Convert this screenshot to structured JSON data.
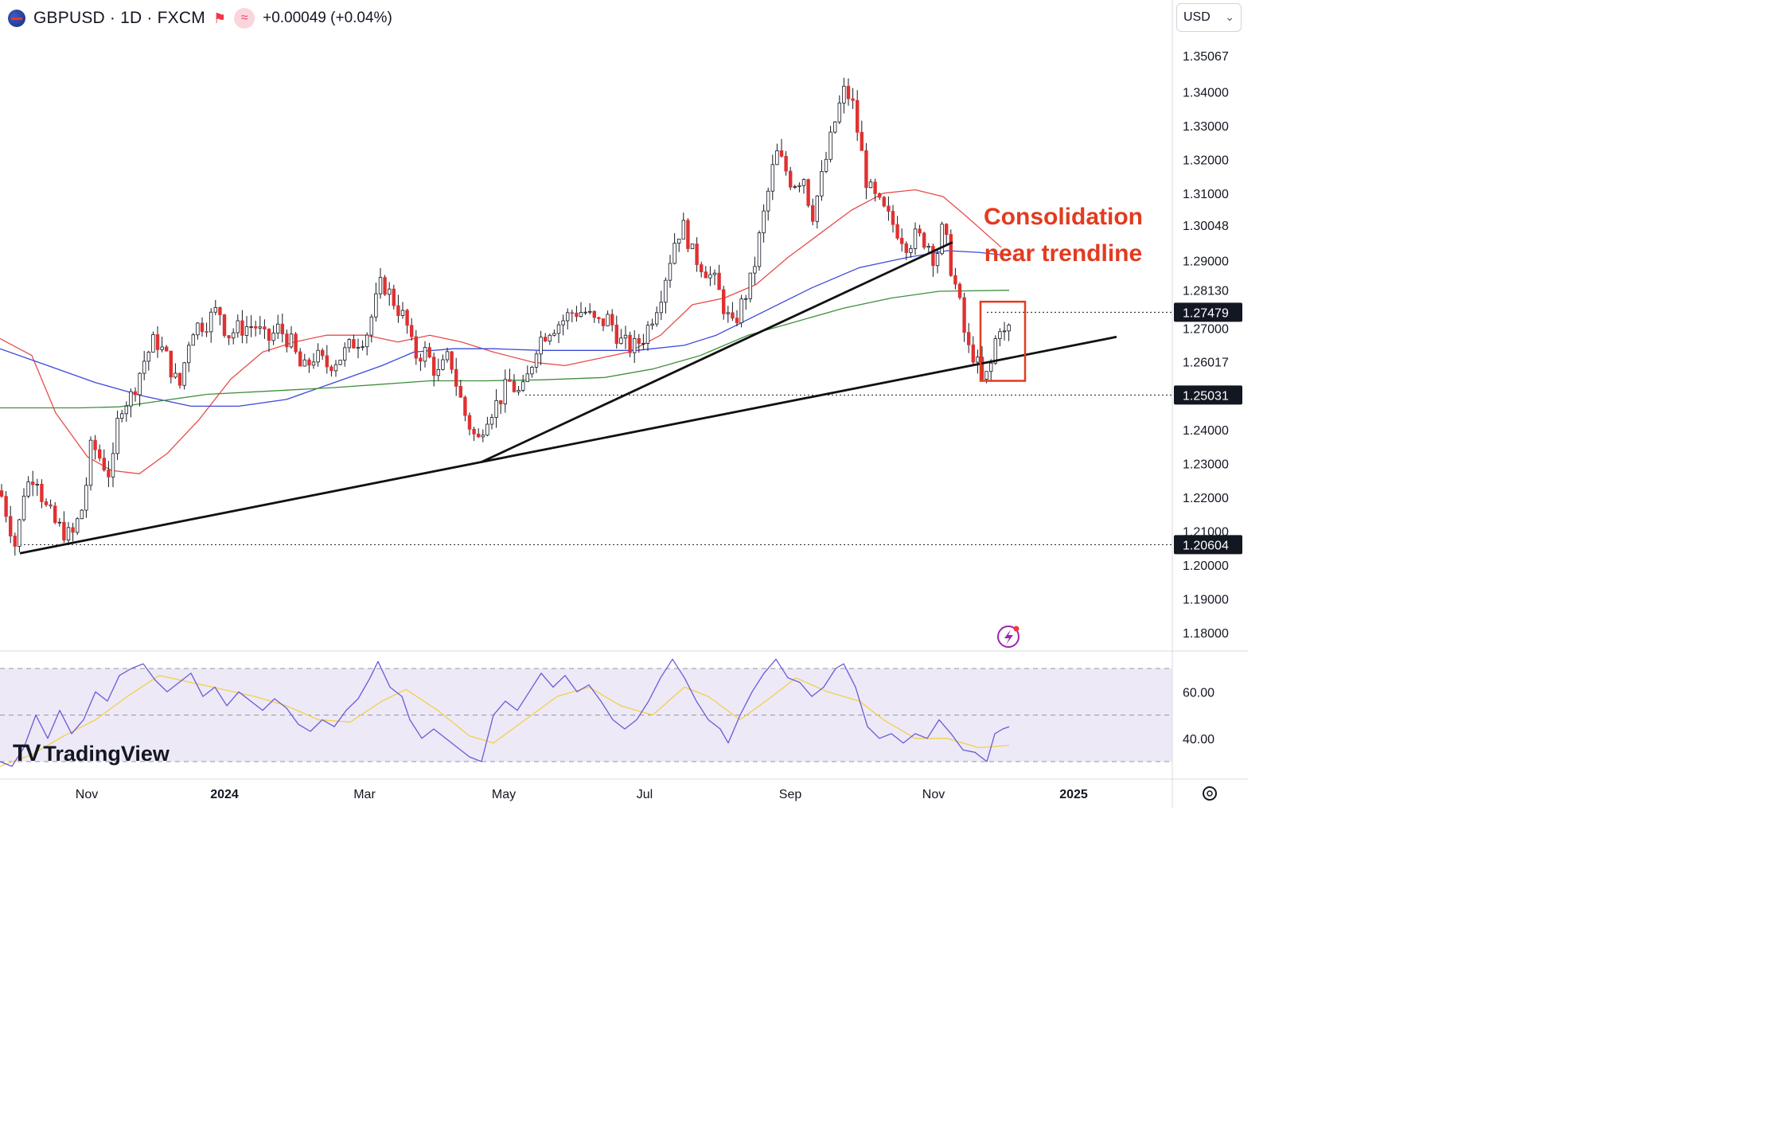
{
  "header": {
    "symbol_label": "GBPUSD · 1D · FXCM",
    "change_label": "+0.00049 (+0.04%)",
    "flag_icon": "gbp-usd-flag-icon",
    "market_icon": "red-flag-icon",
    "indicator_icon": "wave-icon"
  },
  "currency_selector": {
    "value": "USD"
  },
  "annotation": {
    "line1": "Consolidation",
    "line2": "near trendline",
    "color": "#e23b1f"
  },
  "logo": {
    "mark": "TV",
    "name": "TradingView"
  },
  "price_tags": [
    {
      "label": "1.27479",
      "value": 1.27479
    },
    {
      "label": "1.25031",
      "value": 1.25031
    },
    {
      "label": "1.20604",
      "value": 1.20604
    }
  ],
  "chart_data": {
    "type": "line",
    "title": "",
    "price_axis": {
      "ticks": [
        "1.35067",
        "1.34000",
        "1.33000",
        "1.32000",
        "1.31000",
        "1.30048",
        "1.29000",
        "1.28130",
        "1.27000",
        "1.26017",
        "1.24000",
        "1.23000",
        "1.22000",
        "1.21000",
        "1.20000",
        "1.19000",
        "1.18000"
      ],
      "range": [
        1.175,
        1.355
      ]
    },
    "time_axis": {
      "labels": [
        "Nov",
        "2024",
        "Mar",
        "May",
        "Jul",
        "Sep",
        "Nov",
        "2025"
      ],
      "bold": [
        "2024",
        "2025"
      ]
    },
    "series": [
      {
        "name": "",
        "color": "#e84b4b",
        "role": "ma-short",
        "points": [
          [
            0,
            1.267
          ],
          [
            40,
            1.262
          ],
          [
            70,
            1.245
          ],
          [
            110,
            1.232
          ],
          [
            140,
            1.228
          ],
          [
            175,
            1.227
          ],
          [
            210,
            1.233
          ],
          [
            250,
            1.243
          ],
          [
            290,
            1.255
          ],
          [
            330,
            1.263
          ],
          [
            370,
            1.266
          ],
          [
            410,
            1.268
          ],
          [
            460,
            1.268
          ],
          [
            500,
            1.266
          ],
          [
            540,
            1.268
          ],
          [
            580,
            1.266
          ],
          [
            620,
            1.263
          ],
          [
            670,
            1.26
          ],
          [
            710,
            1.259
          ],
          [
            750,
            1.261
          ],
          [
            790,
            1.263
          ],
          [
            830,
            1.268
          ],
          [
            870,
            1.277
          ],
          [
            910,
            1.279
          ],
          [
            950,
            1.283
          ],
          [
            990,
            1.291
          ],
          [
            1030,
            1.298
          ],
          [
            1070,
            1.305
          ],
          [
            1110,
            1.31
          ],
          [
            1150,
            1.311
          ],
          [
            1185,
            1.309
          ],
          [
            1215,
            1.303
          ],
          [
            1258,
            1.294
          ]
        ]
      },
      {
        "name": "",
        "color": "#3b48d9",
        "role": "ma-mid",
        "points": [
          [
            0,
            1.264
          ],
          [
            60,
            1.259
          ],
          [
            120,
            1.254
          ],
          [
            180,
            1.25
          ],
          [
            240,
            1.247
          ],
          [
            300,
            1.247
          ],
          [
            360,
            1.249
          ],
          [
            420,
            1.254
          ],
          [
            480,
            1.259
          ],
          [
            520,
            1.263
          ],
          [
            570,
            1.264
          ],
          [
            620,
            1.264
          ],
          [
            680,
            1.2635
          ],
          [
            740,
            1.2635
          ],
          [
            800,
            1.2635
          ],
          [
            860,
            1.265
          ],
          [
            900,
            1.268
          ],
          [
            960,
            1.275
          ],
          [
            1020,
            1.282
          ],
          [
            1080,
            1.288
          ],
          [
            1140,
            1.291
          ],
          [
            1190,
            1.293
          ],
          [
            1230,
            1.2925
          ],
          [
            1268,
            1.2915
          ]
        ]
      },
      {
        "name": "",
        "color": "#3f8f3f",
        "role": "ma-long",
        "points": [
          [
            0,
            1.2465
          ],
          [
            100,
            1.2465
          ],
          [
            150,
            1.2468
          ],
          [
            200,
            1.2485
          ],
          [
            260,
            1.2505
          ],
          [
            340,
            1.2515
          ],
          [
            420,
            1.2525
          ],
          [
            480,
            1.2535
          ],
          [
            540,
            1.2545
          ],
          [
            610,
            1.2545
          ],
          [
            680,
            1.2548
          ],
          [
            760,
            1.2555
          ],
          [
            820,
            1.258
          ],
          [
            880,
            1.262
          ],
          [
            940,
            1.268
          ],
          [
            1000,
            1.272
          ],
          [
            1060,
            1.276
          ],
          [
            1120,
            1.279
          ],
          [
            1180,
            1.281
          ],
          [
            1268,
            1.2813
          ]
        ]
      },
      {
        "name": "",
        "color": "#111111",
        "role": "trendline-1",
        "points": [
          [
            25,
            1.2035
          ],
          [
            605,
            1.2305
          ],
          [
            1403,
            1.2675
          ]
        ]
      },
      {
        "name": "",
        "color": "#111111",
        "role": "trendline-2",
        "points": [
          [
            605,
            1.2305
          ],
          [
            1197,
            1.2955
          ]
        ]
      }
    ],
    "candles_path": [
      [
        0,
        1.222
      ],
      [
        10,
        1.214
      ],
      [
        20,
        1.205
      ],
      [
        30,
        1.222
      ],
      [
        45,
        1.228
      ],
      [
        55,
        1.218
      ],
      [
        70,
        1.212
      ],
      [
        90,
        1.208
      ],
      [
        105,
        1.218
      ],
      [
        115,
        1.236
      ],
      [
        125,
        1.232
      ],
      [
        140,
        1.226
      ],
      [
        150,
        1.247
      ],
      [
        165,
        1.25
      ],
      [
        180,
        1.26
      ],
      [
        195,
        1.267
      ],
      [
        210,
        1.261
      ],
      [
        225,
        1.252
      ],
      [
        240,
        1.27
      ],
      [
        260,
        1.272
      ],
      [
        275,
        1.276
      ],
      [
        285,
        1.268
      ],
      [
        300,
        1.27
      ],
      [
        320,
        1.271
      ],
      [
        335,
        1.266
      ],
      [
        350,
        1.27
      ],
      [
        365,
        1.266
      ],
      [
        380,
        1.257
      ],
      [
        395,
        1.262
      ],
      [
        410,
        1.259
      ],
      [
        430,
        1.262
      ],
      [
        445,
        1.266
      ],
      [
        460,
        1.268
      ],
      [
        470,
        1.276
      ],
      [
        480,
        1.284
      ],
      [
        495,
        1.278
      ],
      [
        510,
        1.272
      ],
      [
        520,
        1.262
      ],
      [
        535,
        1.263
      ],
      [
        550,
        1.256
      ],
      [
        565,
        1.262
      ],
      [
        575,
        1.252
      ],
      [
        585,
        1.244
      ],
      [
        600,
        1.236
      ],
      [
        610,
        1.244
      ],
      [
        625,
        1.248
      ],
      [
        640,
        1.254
      ],
      [
        655,
        1.25
      ],
      [
        665,
        1.257
      ],
      [
        675,
        1.266
      ],
      [
        690,
        1.27
      ],
      [
        705,
        1.272
      ],
      [
        720,
        1.275
      ],
      [
        735,
        1.275
      ],
      [
        750,
        1.271
      ],
      [
        765,
        1.273
      ],
      [
        780,
        1.266
      ],
      [
        795,
        1.264
      ],
      [
        810,
        1.268
      ],
      [
        820,
        1.274
      ],
      [
        830,
        1.28
      ],
      [
        840,
        1.289
      ],
      [
        850,
        1.298
      ],
      [
        860,
        1.3
      ],
      [
        870,
        1.292
      ],
      [
        885,
        1.288
      ],
      [
        900,
        1.283
      ],
      [
        910,
        1.276
      ],
      [
        920,
        1.27
      ],
      [
        930,
        1.276
      ],
      [
        945,
        1.285
      ],
      [
        955,
        1.298
      ],
      [
        965,
        1.31
      ],
      [
        975,
        1.322
      ],
      [
        985,
        1.318
      ],
      [
        995,
        1.313
      ],
      [
        1010,
        1.315
      ],
      [
        1020,
        1.303
      ],
      [
        1030,
        1.312
      ],
      [
        1040,
        1.322
      ],
      [
        1050,
        1.332
      ],
      [
        1060,
        1.34
      ],
      [
        1070,
        1.338
      ],
      [
        1080,
        1.325
      ],
      [
        1090,
        1.312
      ],
      [
        1100,
        1.308
      ],
      [
        1115,
        1.303
      ],
      [
        1125,
        1.3
      ],
      [
        1140,
        1.295
      ],
      [
        1150,
        1.297
      ],
      [
        1165,
        1.296
      ],
      [
        1175,
        1.29
      ],
      [
        1185,
        1.3
      ],
      [
        1195,
        1.288
      ],
      [
        1205,
        1.278
      ],
      [
        1215,
        1.264
      ],
      [
        1225,
        1.262
      ],
      [
        1235,
        1.253
      ],
      [
        1245,
        1.259
      ],
      [
        1255,
        1.272
      ],
      [
        1262,
        1.268
      ],
      [
        1268,
        1.27
      ]
    ],
    "consolidation_box": {
      "x_range": [
        1232,
        1288
      ],
      "price_range": [
        1.2545,
        1.2779
      ]
    },
    "horizontal_levels": [
      1.27479,
      1.25031,
      1.20604
    ],
    "rsi": {
      "ticks": [
        "60.00",
        "40.00"
      ],
      "range": [
        25,
        80
      ],
      "band": [
        30,
        70
      ],
      "mid": 50,
      "rsi_color": "#6b5bd6",
      "signal_color": "#f2d04a",
      "rsi_points": [
        [
          0,
          30
        ],
        [
          15,
          28
        ],
        [
          30,
          36
        ],
        [
          45,
          50
        ],
        [
          60,
          40
        ],
        [
          75,
          52
        ],
        [
          90,
          42
        ],
        [
          105,
          48
        ],
        [
          120,
          60
        ],
        [
          135,
          56
        ],
        [
          150,
          67
        ],
        [
          165,
          70
        ],
        [
          180,
          72
        ],
        [
          195,
          65
        ],
        [
          210,
          60
        ],
        [
          225,
          64
        ],
        [
          240,
          68
        ],
        [
          255,
          58
        ],
        [
          270,
          62
        ],
        [
          285,
          54
        ],
        [
          300,
          60
        ],
        [
          315,
          56
        ],
        [
          330,
          52
        ],
        [
          345,
          57
        ],
        [
          360,
          53
        ],
        [
          375,
          46
        ],
        [
          390,
          43
        ],
        [
          405,
          48
        ],
        [
          420,
          45
        ],
        [
          435,
          52
        ],
        [
          450,
          57
        ],
        [
          465,
          66
        ],
        [
          475,
          73
        ],
        [
          490,
          62
        ],
        [
          505,
          58
        ],
        [
          515,
          48
        ],
        [
          530,
          40
        ],
        [
          545,
          44
        ],
        [
          560,
          40
        ],
        [
          575,
          36
        ],
        [
          590,
          32
        ],
        [
          605,
          30
        ],
        [
          620,
          50
        ],
        [
          635,
          56
        ],
        [
          650,
          52
        ],
        [
          665,
          60
        ],
        [
          680,
          68
        ],
        [
          695,
          62
        ],
        [
          710,
          67
        ],
        [
          725,
          60
        ],
        [
          740,
          63
        ],
        [
          755,
          56
        ],
        [
          770,
          48
        ],
        [
          785,
          44
        ],
        [
          800,
          48
        ],
        [
          815,
          56
        ],
        [
          830,
          66
        ],
        [
          845,
          74
        ],
        [
          860,
          66
        ],
        [
          875,
          56
        ],
        [
          890,
          48
        ],
        [
          905,
          44
        ],
        [
          915,
          38
        ],
        [
          930,
          50
        ],
        [
          945,
          60
        ],
        [
          960,
          68
        ],
        [
          975,
          74
        ],
        [
          990,
          66
        ],
        [
          1005,
          64
        ],
        [
          1020,
          58
        ],
        [
          1035,
          62
        ],
        [
          1050,
          70
        ],
        [
          1060,
          72
        ],
        [
          1075,
          62
        ],
        [
          1090,
          45
        ],
        [
          1105,
          40
        ],
        [
          1120,
          42
        ],
        [
          1135,
          38
        ],
        [
          1150,
          42
        ],
        [
          1165,
          40
        ],
        [
          1180,
          48
        ],
        [
          1195,
          42
        ],
        [
          1210,
          35
        ],
        [
          1225,
          34
        ],
        [
          1240,
          30
        ],
        [
          1250,
          42
        ],
        [
          1260,
          44
        ],
        [
          1268,
          45
        ]
      ],
      "signal_points": [
        [
          0,
          28
        ],
        [
          40,
          33
        ],
        [
          80,
          41
        ],
        [
          120,
          48
        ],
        [
          160,
          58
        ],
        [
          200,
          67
        ],
        [
          240,
          64
        ],
        [
          280,
          61
        ],
        [
          320,
          58
        ],
        [
          360,
          54
        ],
        [
          400,
          48
        ],
        [
          440,
          47
        ],
        [
          480,
          56
        ],
        [
          510,
          61
        ],
        [
          550,
          52
        ],
        [
          590,
          41
        ],
        [
          620,
          38
        ],
        [
          660,
          48
        ],
        [
          700,
          58
        ],
        [
          740,
          62
        ],
        [
          780,
          54
        ],
        [
          820,
          50
        ],
        [
          860,
          62
        ],
        [
          890,
          58
        ],
        [
          930,
          48
        ],
        [
          970,
          58
        ],
        [
          1000,
          66
        ],
        [
          1040,
          60
        ],
        [
          1080,
          56
        ],
        [
          1110,
          48
        ],
        [
          1150,
          40
        ],
        [
          1190,
          40
        ],
        [
          1230,
          36
        ],
        [
          1268,
          37
        ]
      ]
    }
  }
}
